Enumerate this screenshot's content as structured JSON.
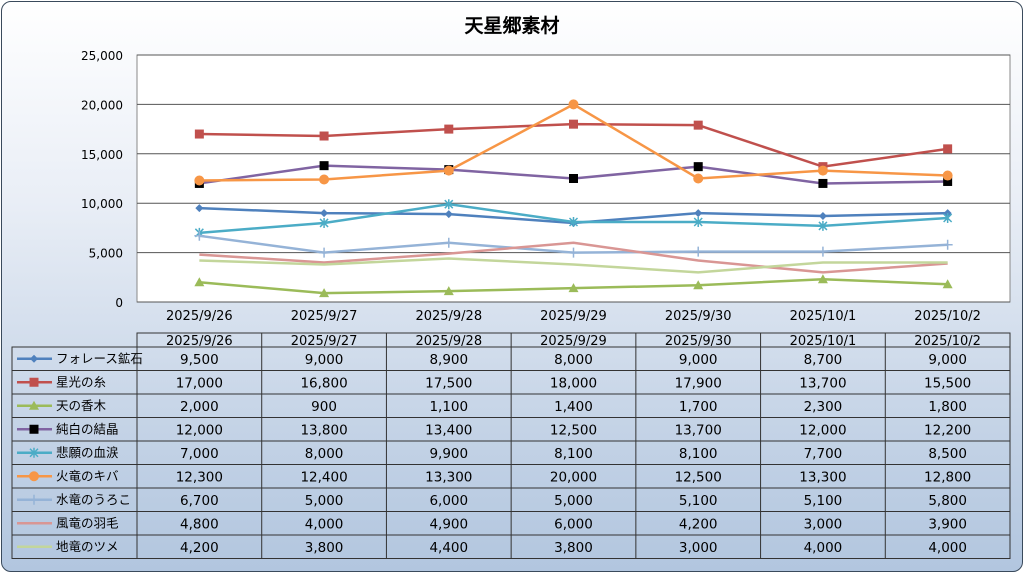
{
  "chart_data": {
    "type": "line",
    "title": "天星郷素材",
    "xlabel": "",
    "ylabel": "",
    "ylim": [
      0,
      25000
    ],
    "yticks": [
      "0",
      "5,000",
      "10,000",
      "15,000",
      "20,000",
      "25,000"
    ],
    "grid": true,
    "legend": "data-table",
    "categories": [
      "2025/9/26",
      "2025/9/27",
      "2025/9/28",
      "2025/9/29",
      "2025/9/30",
      "2025/10/1",
      "2025/10/2"
    ],
    "series": [
      {
        "name": "フォレース鉱石",
        "color": "#4F81BD",
        "marker": "diamond",
        "values": [
          9500,
          9000,
          8900,
          8000,
          9000,
          8700,
          9000
        ]
      },
      {
        "name": "星光の糸",
        "color": "#C0504D",
        "marker": "square",
        "values": [
          17000,
          16800,
          17500,
          18000,
          17900,
          13700,
          15500
        ]
      },
      {
        "name": "天の香木",
        "color": "#9BBB59",
        "marker": "triangle",
        "values": [
          2000,
          900,
          1100,
          1400,
          1700,
          2300,
          1800
        ]
      },
      {
        "name": "純白の結晶",
        "color": "#8064A2",
        "marker": "black-square",
        "values": [
          12000,
          13800,
          13400,
          12500,
          13700,
          12000,
          12200
        ]
      },
      {
        "name": "悲願の血涙",
        "color": "#4BACC6",
        "marker": "asterisk",
        "values": [
          7000,
          8000,
          9900,
          8100,
          8100,
          7700,
          8500
        ]
      },
      {
        "name": "火竜のキバ",
        "color": "#F79646",
        "marker": "circle",
        "values": [
          12300,
          12400,
          13300,
          20000,
          12500,
          13300,
          12800
        ]
      },
      {
        "name": "水竜のうろこ",
        "color": "#95B3D7",
        "marker": "plus",
        "values": [
          6700,
          5000,
          6000,
          5000,
          5100,
          5100,
          5800
        ]
      },
      {
        "name": "風竜の羽毛",
        "color": "#D99694",
        "marker": "none",
        "values": [
          4800,
          4000,
          4900,
          6000,
          4200,
          3000,
          3900
        ]
      },
      {
        "name": "地竜のツメ",
        "color": "#C3D69B",
        "marker": "none",
        "values": [
          4200,
          3800,
          4400,
          3800,
          3000,
          4000,
          4000
        ]
      }
    ]
  }
}
